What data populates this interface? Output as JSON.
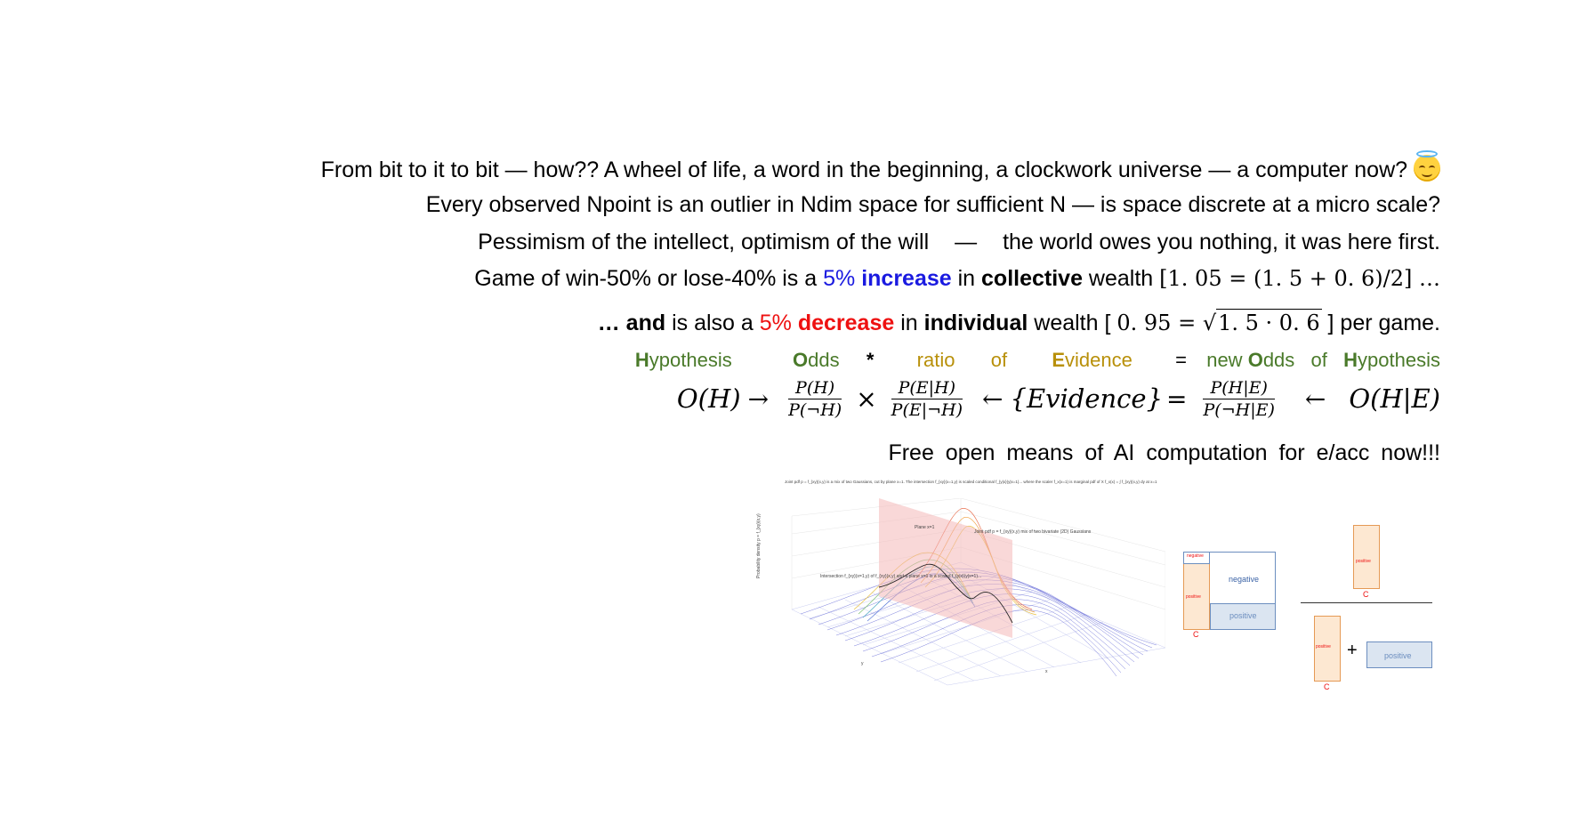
{
  "lines": {
    "l1": "From bit to it to bit — how?? A wheel of life, a word in the beginning, a clockwork universe — a computer now?",
    "l2": "Every observed Npoint is an outlier in Ndim space for sufficient N — is space discrete at a micro scale?",
    "l3a": "Pessimism of the intellect,  optimism of the will",
    "l3dash": "—",
    "l3b": "the world owes you nothing,  it was here first.",
    "l4a": "Game of win-50% or lose-40% is a ",
    "l4blue1": "5% ",
    "l4blue2": "increase",
    "l4c": " in ",
    "l4d": "collective",
    "l4e": " wealth ",
    "l4math": "[1. 05  =  (1. 5  +  0. 6)/2] …",
    "l5a": "… and",
    "l5b": " is also a ",
    "l5red1": "5% ",
    "l5red2": "decrease",
    "l5c": " in ",
    "l5d": "individual",
    "l5e": " wealth [ ",
    "l5math1": "0. 95  = ",
    "l5sqrt": "1. 5  ·  0. 6",
    "l5f": " ] per game.",
    "l8": "Free  open  means  of  AI  computation  for  e/acc  now!!!"
  },
  "hypothesis_row": {
    "h_cap": "H",
    "h_rest": "ypothesis",
    "o_cap": "O",
    "o_rest": "dds",
    "star": "*",
    "ratio": "ratio",
    "of": "of",
    "e_cap": "E",
    "e_rest": "vidence",
    "eq": "=",
    "new": "new",
    "o2_cap": "O",
    "o2_rest": "dds",
    "of2": "of",
    "h2_cap": "H",
    "h2_rest": "ypothesis"
  },
  "formula": {
    "lhs": "O(H)",
    "arrow1": "→",
    "f1_num": "P(H)",
    "f1_den": "P(¬H)",
    "times": "×",
    "f2_num": "P(E|H)",
    "f2_den": "P(E|¬H)",
    "larrow": "←",
    "evidence": "{Evidence}",
    "eq": "=",
    "f3_num": "P(H|E)",
    "f3_den": "P(¬H|E)",
    "larrow2": "←",
    "rhs": "O(H|E)"
  },
  "figure": {
    "caption": "Joint pdf p = f_{xy}(x,y) is a mix of two Gaussians, cut by plane x=1. The intersection f_{xy}(x=1,y) is scaled conditional f_{y|x}(y|x=1)... where the scaler f_x(x=1) is marginal pdf of X f_x(x) = ∫ f_{xy}(x,y) dy at x=1",
    "plane_label": "Plane x=1",
    "surface_label": "Joint pdf p = f_{xy}(x,y) mix of two bivariate (2D) Gaussians",
    "intersection_label": "Intersection f_{xy}(x=1,y) of f_{xy}(x,y) and a plane x=1 is a scaled f_{y|x}(y|x=1)...",
    "zlabel": "Probability density p = f_{xy}(x,y)",
    "xlabel": "x",
    "ylabel": "y"
  },
  "venn": {
    "negative_small": "negative",
    "positive_small": "positive",
    "negative": "negative",
    "positive": "positive",
    "c1": "C",
    "frac_positive": "positive",
    "c2": "C",
    "den_positive_c": "positive",
    "plus": "+",
    "den_positive": "positive",
    "c3": "C"
  },
  "colors": {
    "blue": "#1a1ae0",
    "red": "#ee1111",
    "green": "#4a7a2a",
    "gold": "#b8900a",
    "box_orange": "#fde8d2",
    "box_blue": "#dbe5f1"
  },
  "icons": {
    "emoji": "smiling-face-with-halo-icon"
  }
}
